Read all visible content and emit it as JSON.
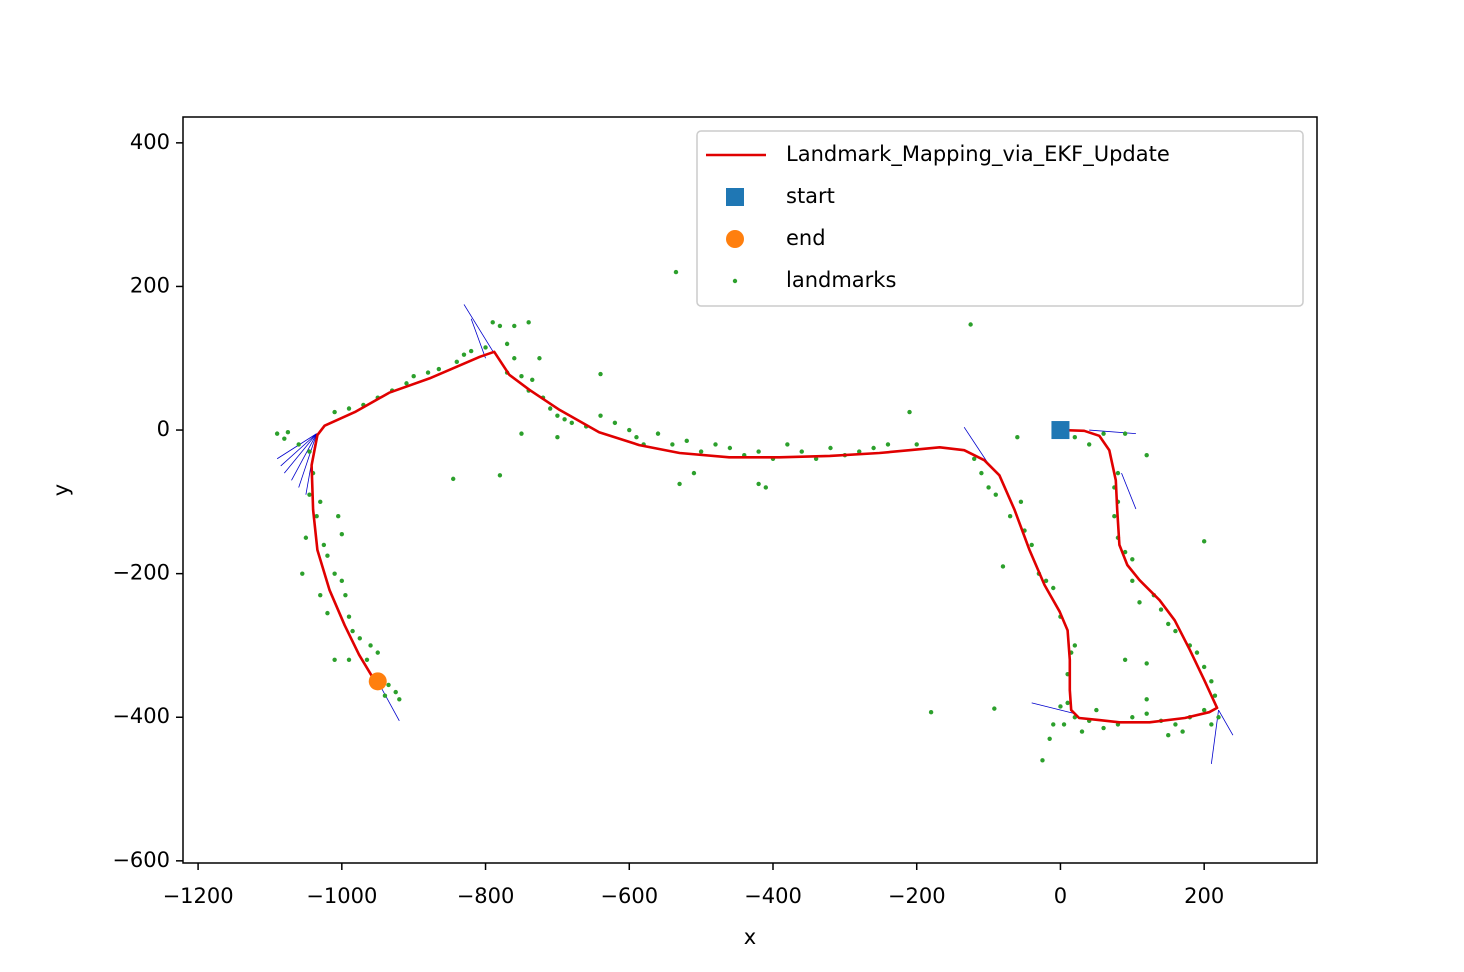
{
  "chart_data": {
    "type": "scatter",
    "xlabel": "x",
    "ylabel": "y",
    "xlim": [
      -1221,
      357
    ],
    "ylim": [
      -603,
      436
    ],
    "xticks": [
      {
        "value": -1200,
        "label": "−1200"
      },
      {
        "value": -1000,
        "label": "−1000"
      },
      {
        "value": -800,
        "label": "−800"
      },
      {
        "value": -600,
        "label": "−600"
      },
      {
        "value": -400,
        "label": "−400"
      },
      {
        "value": -200,
        "label": "−200"
      },
      0,
      200
    ],
    "yticks": [
      {
        "value": -600,
        "label": "−600"
      },
      {
        "value": -400,
        "label": "−400"
      },
      {
        "value": -200,
        "label": "−200"
      },
      0,
      200,
      400
    ],
    "legend": "upper right",
    "series": [
      {
        "name": "Landmark_Mapping_via_EKF_Update",
        "type": "line",
        "color": "#e00000",
        "x": [
          0,
          33,
          54,
          68,
          77,
          79,
          82,
          93,
          110,
          138,
          159,
          180,
          200,
          218,
          207,
          173,
          124,
          82,
          54,
          26,
          15,
          13,
          13,
          10,
          -1,
          -22,
          -43,
          -64,
          -85,
          -106,
          -134,
          -168,
          -210,
          -252,
          -321,
          -391,
          -461,
          -530,
          -586,
          -642,
          -697,
          -739,
          -767,
          -788,
          -808,
          -878,
          -934,
          -982,
          -1024,
          -1034,
          -1042,
          -1040,
          -1034,
          -1017,
          -996,
          -976,
          -955
        ],
        "y": [
          0,
          -1,
          -8,
          -28,
          -70,
          -111,
          -160,
          -188,
          -209,
          -237,
          -265,
          -306,
          -348,
          -387,
          -393,
          -401,
          -407,
          -407,
          -404,
          -401,
          -390,
          -362,
          -320,
          -279,
          -253,
          -216,
          -167,
          -111,
          -63,
          -42,
          -28,
          -24,
          -28,
          -32,
          -36,
          -38,
          -38,
          -32,
          -21,
          -3,
          28,
          56,
          77,
          109,
          102,
          72,
          52,
          25,
          6,
          -7,
          -49,
          -111,
          -167,
          -223,
          -272,
          -313,
          -348
        ]
      },
      {
        "name": "start",
        "type": "square",
        "color": "#1f77b4",
        "x": [
          0
        ],
        "y": [
          0
        ]
      },
      {
        "name": "end",
        "type": "circle",
        "color": "#ff7f0e",
        "x": [
          -950
        ],
        "y": [
          -350
        ]
      },
      {
        "name": "landmarks",
        "type": "dot",
        "color": "#2ca02c",
        "x": [
          -535,
          -125,
          -845,
          -780,
          -640,
          -180,
          -92,
          -25,
          200,
          90,
          120,
          120,
          -1090,
          -1080,
          -1075,
          -1060,
          -1045,
          -1040,
          -1045,
          -1030,
          -1035,
          -1050,
          -1025,
          -1020,
          -1055,
          -1010,
          -1000,
          -1030,
          -995,
          -1020,
          -990,
          -985,
          -975,
          -960,
          -965,
          -950,
          -990,
          -1010,
          -935,
          -925,
          -940,
          -920,
          -1005,
          -1000,
          -1010,
          -990,
          -970,
          -950,
          -930,
          -910,
          -900,
          -880,
          -865,
          -840,
          -830,
          -820,
          -800,
          -790,
          -780,
          -760,
          -740,
          -770,
          -760,
          -770,
          -750,
          -735,
          -740,
          -720,
          -725,
          -710,
          -700,
          -690,
          -680,
          -660,
          -640,
          -620,
          -600,
          -590,
          -580,
          -560,
          -540,
          -520,
          -500,
          -480,
          -460,
          -440,
          -420,
          -400,
          -380,
          -360,
          -340,
          -320,
          -300,
          -280,
          -260,
          -240,
          -200,
          -210,
          -120,
          -110,
          -100,
          -90,
          -60,
          -70,
          -50,
          -40,
          -30,
          -20,
          -10,
          -80,
          -55,
          -700,
          -750,
          -510,
          -530,
          -420,
          -410,
          20,
          40,
          60,
          90,
          120,
          80,
          75,
          80,
          75,
          80,
          90,
          100,
          100,
          110,
          130,
          140,
          150,
          160,
          180,
          190,
          200,
          210,
          215,
          200,
          180,
          160,
          140,
          120,
          100,
          80,
          60,
          40,
          30,
          20,
          10,
          0,
          5,
          10,
          15,
          20,
          0,
          -10,
          -15,
          50,
          150,
          170,
          210,
          220
        ],
        "y": [
          220,
          147,
          -68,
          -63,
          78,
          -393,
          -388,
          -460,
          -155,
          -320,
          -325,
          -375,
          -5,
          -12,
          -3,
          -20,
          -30,
          -60,
          -90,
          -100,
          -120,
          -150,
          -160,
          -175,
          -200,
          -200,
          -210,
          -230,
          -230,
          -255,
          -260,
          -280,
          -290,
          -300,
          -320,
          -310,
          -320,
          -320,
          -355,
          -365,
          -370,
          -375,
          -120,
          -145,
          25,
          30,
          35,
          45,
          55,
          65,
          75,
          80,
          85,
          95,
          105,
          110,
          115,
          150,
          145,
          145,
          150,
          120,
          100,
          80,
          75,
          70,
          55,
          45,
          100,
          30,
          20,
          15,
          10,
          5,
          20,
          10,
          0,
          -10,
          -20,
          -5,
          -20,
          -15,
          -30,
          -20,
          -25,
          -35,
          -30,
          -40,
          -20,
          -30,
          -40,
          -25,
          -35,
          -30,
          -25,
          -20,
          -20,
          25,
          -40,
          -60,
          -80,
          -90,
          -10,
          -120,
          -140,
          -160,
          -200,
          -210,
          -220,
          -190,
          -100,
          -10,
          -5,
          -60,
          -75,
          -75,
          -80,
          -10,
          -20,
          -5,
          -5,
          -35,
          -60,
          -80,
          -100,
          -120,
          -150,
          -170,
          -180,
          -210,
          -240,
          -230,
          -250,
          -270,
          -280,
          -300,
          -310,
          -330,
          -350,
          -370,
          -390,
          -400,
          -410,
          -405,
          -395,
          -400,
          -410,
          -415,
          -405,
          -420,
          -400,
          -380,
          -385,
          -410,
          -340,
          -310,
          -300,
          -260,
          -410,
          -430,
          -390,
          -425,
          -420,
          -410,
          -400
        ]
      }
    ],
    "arrows": {
      "color": "#0000cc",
      "x": [
        -1035,
        -1035,
        -1035,
        -1035,
        -1035,
        -1035,
        -790,
        -800,
        -950,
        -134,
        220,
        220,
        20,
        40,
        85
      ],
      "y": [
        -5,
        -5,
        -5,
        -5,
        -5,
        -5,
        110,
        100,
        -350,
        4,
        -390,
        -390,
        -395,
        0,
        -60
      ],
      "u": [
        -55,
        -50,
        -45,
        -35,
        -25,
        -15,
        -40,
        -20,
        30,
        35,
        20,
        -10,
        -60,
        65,
        20
      ],
      "v": [
        -35,
        -45,
        -55,
        -65,
        -75,
        -85,
        65,
        55,
        -55,
        -53,
        -35,
        -75,
        15,
        -5,
        -50
      ]
    }
  }
}
